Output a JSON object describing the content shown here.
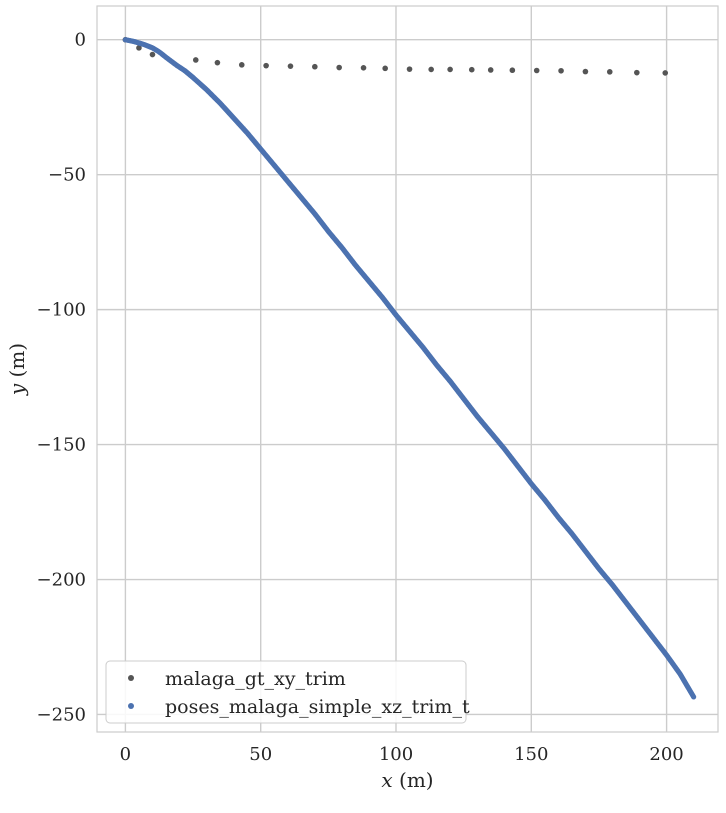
{
  "chart_data": {
    "type": "scatter",
    "xlabel_var": "x",
    "xlabel_unit": " (m)",
    "ylabel_var": "y",
    "ylabel_unit": " (m)",
    "xlim": [
      -10.5,
      219
    ],
    "ylim": [
      -256.5,
      12.5
    ],
    "xticks": [
      0,
      50,
      100,
      150,
      200
    ],
    "yticks": [
      0,
      -50,
      -100,
      -150,
      -200,
      -250
    ],
    "grid": true,
    "legend_position": "lower left",
    "series": [
      {
        "name": "malaga_gt_xy_trim",
        "color": "#555555",
        "marker": "dot",
        "points": [
          [
            0,
            0
          ],
          [
            5,
            -3
          ],
          [
            10,
            -5.5
          ],
          [
            26,
            -7.5
          ],
          [
            34,
            -8.5
          ],
          [
            43,
            -9.3
          ],
          [
            52,
            -9.6
          ],
          [
            61,
            -9.8
          ],
          [
            70,
            -10
          ],
          [
            79,
            -10.3
          ],
          [
            88,
            -10.4
          ],
          [
            96,
            -10.6
          ],
          [
            105,
            -10.9
          ],
          [
            113,
            -11
          ],
          [
            120,
            -11
          ],
          [
            128,
            -11.1
          ],
          [
            135,
            -11.2
          ],
          [
            143,
            -11.3
          ],
          [
            152,
            -11.4
          ],
          [
            161,
            -11.5
          ],
          [
            170,
            -11.8
          ],
          [
            179,
            -11.9
          ],
          [
            189,
            -12.2
          ],
          [
            199.5,
            -12.3
          ]
        ]
      },
      {
        "name": "poses_malaga_simple_xz_trim_t",
        "color": "#4c72b0",
        "marker": "dot",
        "points": [
          [
            0,
            0
          ],
          [
            1,
            -0.2
          ],
          [
            2,
            -0.4
          ],
          [
            3,
            -0.6
          ],
          [
            4,
            -0.9
          ],
          [
            5,
            -1.2
          ],
          [
            6,
            -1.5
          ],
          [
            7,
            -1.8
          ],
          [
            8,
            -2.2
          ],
          [
            9,
            -2.6
          ],
          [
            10,
            -3.0
          ],
          [
            11,
            -3.6
          ],
          [
            12,
            -4.2
          ],
          [
            13,
            -4.9
          ],
          [
            14,
            -5.7
          ],
          [
            15,
            -6.5
          ],
          [
            17,
            -8.0
          ],
          [
            19,
            -9.5
          ],
          [
            22,
            -11.5
          ],
          [
            25,
            -14
          ],
          [
            30,
            -18.5
          ],
          [
            35,
            -23.5
          ],
          [
            40,
            -29
          ],
          [
            45,
            -34.5
          ],
          [
            50,
            -40.5
          ],
          [
            55,
            -46.5
          ],
          [
            60,
            -52.5
          ],
          [
            65,
            -58.5
          ],
          [
            70,
            -64.5
          ],
          [
            75,
            -71
          ],
          [
            80,
            -77
          ],
          [
            85,
            -83.5
          ],
          [
            90,
            -89.5
          ],
          [
            95,
            -95.5
          ],
          [
            100,
            -102
          ],
          [
            105,
            -108
          ],
          [
            110,
            -114
          ],
          [
            115,
            -120.5
          ],
          [
            120,
            -126.5
          ],
          [
            125,
            -133
          ],
          [
            130,
            -139.5
          ],
          [
            135,
            -145.5
          ],
          [
            140,
            -151.5
          ],
          [
            145,
            -158
          ],
          [
            150,
            -164.5
          ],
          [
            155,
            -170.5
          ],
          [
            160,
            -177
          ],
          [
            165,
            -183
          ],
          [
            170,
            -189.5
          ],
          [
            175,
            -196
          ],
          [
            180,
            -202
          ],
          [
            185,
            -208.5
          ],
          [
            190,
            -215
          ],
          [
            195,
            -221.5
          ],
          [
            200,
            -228
          ],
          [
            205,
            -235
          ],
          [
            210,
            -243.5
          ]
        ]
      }
    ]
  }
}
